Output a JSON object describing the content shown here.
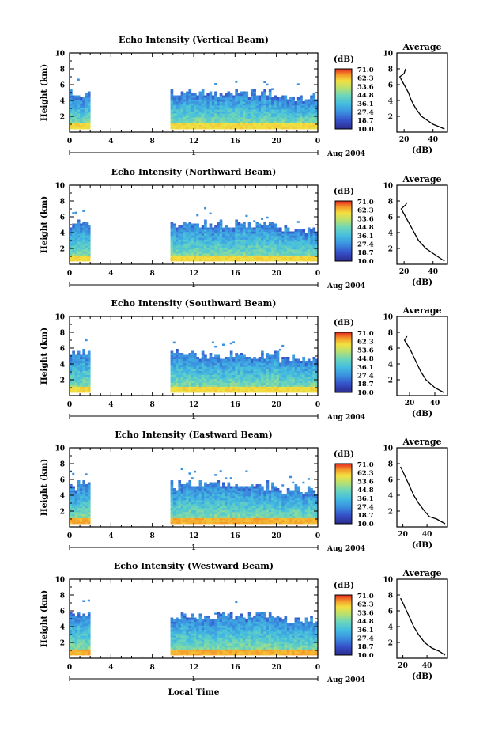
{
  "xlabel": "Local Time",
  "date_label": "Aug 2004",
  "day_label": "1",
  "ylabel": "Height (km)",
  "colorbar_unit": "(dB)",
  "colorbar_ticks": [
    "71.0",
    "62.3",
    "53.6",
    "44.8",
    "36.1",
    "27.4",
    "18.7",
    "10.0"
  ],
  "avg_title": "Average",
  "avg_xlabel": "(dB)",
  "x_ticks": [
    "0",
    "4",
    "8",
    "12",
    "16",
    "20",
    "0"
  ],
  "y_ticks": [
    "2",
    "4",
    "6",
    "8",
    "10"
  ],
  "colors": {
    "low": "#2b2b8c",
    "mid": "#45bde0",
    "high": "#f4c23a",
    "top": "#e6261f"
  },
  "chart_data": [
    {
      "type": "heatmap",
      "title": "Echo Intensity (Vertical Beam)",
      "xlabel": "Local Time",
      "ylabel": "Height (km)",
      "xlim": [
        0,
        24
      ],
      "ylim": [
        0,
        10
      ],
      "clim": [
        10.0,
        71.0
      ],
      "data_gaps_hours": [
        [
          2.2,
          9.7
        ]
      ],
      "average_profile": {
        "title": "Average",
        "xlabel": "(dB)",
        "xlim": [
          15,
          50
        ],
        "x_ticks": [
          "20",
          "40"
        ],
        "height_km": [
          0.4,
          1,
          2,
          3,
          4,
          5,
          6,
          7,
          7.4,
          8.0
        ],
        "db": [
          48,
          40,
          32,
          28,
          25,
          23,
          20,
          17,
          20,
          21
        ]
      }
    },
    {
      "type": "heatmap",
      "title": "Echo Intensity (Northward Beam)",
      "xlabel": "Local Time",
      "ylabel": "Height (km)",
      "xlim": [
        0,
        24
      ],
      "ylim": [
        0,
        10
      ],
      "clim": [
        10.0,
        71.0
      ],
      "data_gaps_hours": [
        [
          2.2,
          9.7
        ]
      ],
      "average_profile": {
        "title": "Average",
        "xlabel": "(dB)",
        "xlim": [
          15,
          50
        ],
        "x_ticks": [
          "20",
          "40"
        ],
        "height_km": [
          0.4,
          1,
          2,
          3,
          4,
          5,
          6,
          7,
          7.5,
          7.8
        ],
        "db": [
          48,
          43,
          35,
          30,
          27,
          24,
          21,
          18,
          21,
          22
        ]
      }
    },
    {
      "type": "heatmap",
      "title": "Echo Intensity (Southward Beam)",
      "xlabel": "Local Time",
      "ylabel": "Height (km)",
      "xlim": [
        0,
        24
      ],
      "ylim": [
        0,
        10
      ],
      "clim": [
        10.0,
        71.0
      ],
      "data_gaps_hours": [
        [
          2.2,
          9.7
        ]
      ],
      "average_profile": {
        "title": "Average",
        "xlabel": "(dB)",
        "xlim": [
          10,
          50
        ],
        "x_ticks": [
          "20",
          "40"
        ],
        "height_km": [
          0.4,
          1,
          2,
          3,
          4,
          5,
          6,
          7,
          7.5
        ],
        "db": [
          47,
          40,
          33,
          29,
          26,
          23,
          20,
          16,
          18
        ]
      }
    },
    {
      "type": "heatmap",
      "title": "Echo Intensity (Eastward Beam)",
      "xlabel": "Local Time",
      "ylabel": "Height (km)",
      "xlim": [
        0,
        24
      ],
      "ylim": [
        0,
        10
      ],
      "clim": [
        10.0,
        71.0
      ],
      "data_gaps_hours": [
        [
          2.2,
          9.7
        ]
      ],
      "average_profile": {
        "title": "Average",
        "xlabel": "(dB)",
        "xlim": [
          15,
          57
        ],
        "x_ticks": [
          "20",
          "40"
        ],
        "height_km": [
          0.4,
          1,
          1.3,
          2,
          3,
          4,
          5,
          6,
          7,
          7.6
        ],
        "db": [
          55,
          48,
          42,
          38,
          33,
          29,
          26,
          23,
          20,
          18
        ]
      }
    },
    {
      "type": "heatmap",
      "title": "Echo Intensity (Westward Beam)",
      "xlabel": "Local Time",
      "ylabel": "Height (km)",
      "xlim": [
        0,
        24
      ],
      "ylim": [
        0,
        10
      ],
      "clim": [
        10.0,
        71.0
      ],
      "data_gaps_hours": [
        [
          2.2,
          9.7
        ]
      ],
      "average_profile": {
        "title": "Average",
        "xlabel": "(dB)",
        "xlim": [
          15,
          57
        ],
        "x_ticks": [
          "20",
          "40"
        ],
        "height_km": [
          0.4,
          0.9,
          1.3,
          2,
          3,
          4,
          5,
          6,
          7,
          7.6
        ],
        "db": [
          55,
          50,
          44,
          38,
          33,
          29,
          26,
          23,
          20,
          18
        ]
      }
    }
  ]
}
